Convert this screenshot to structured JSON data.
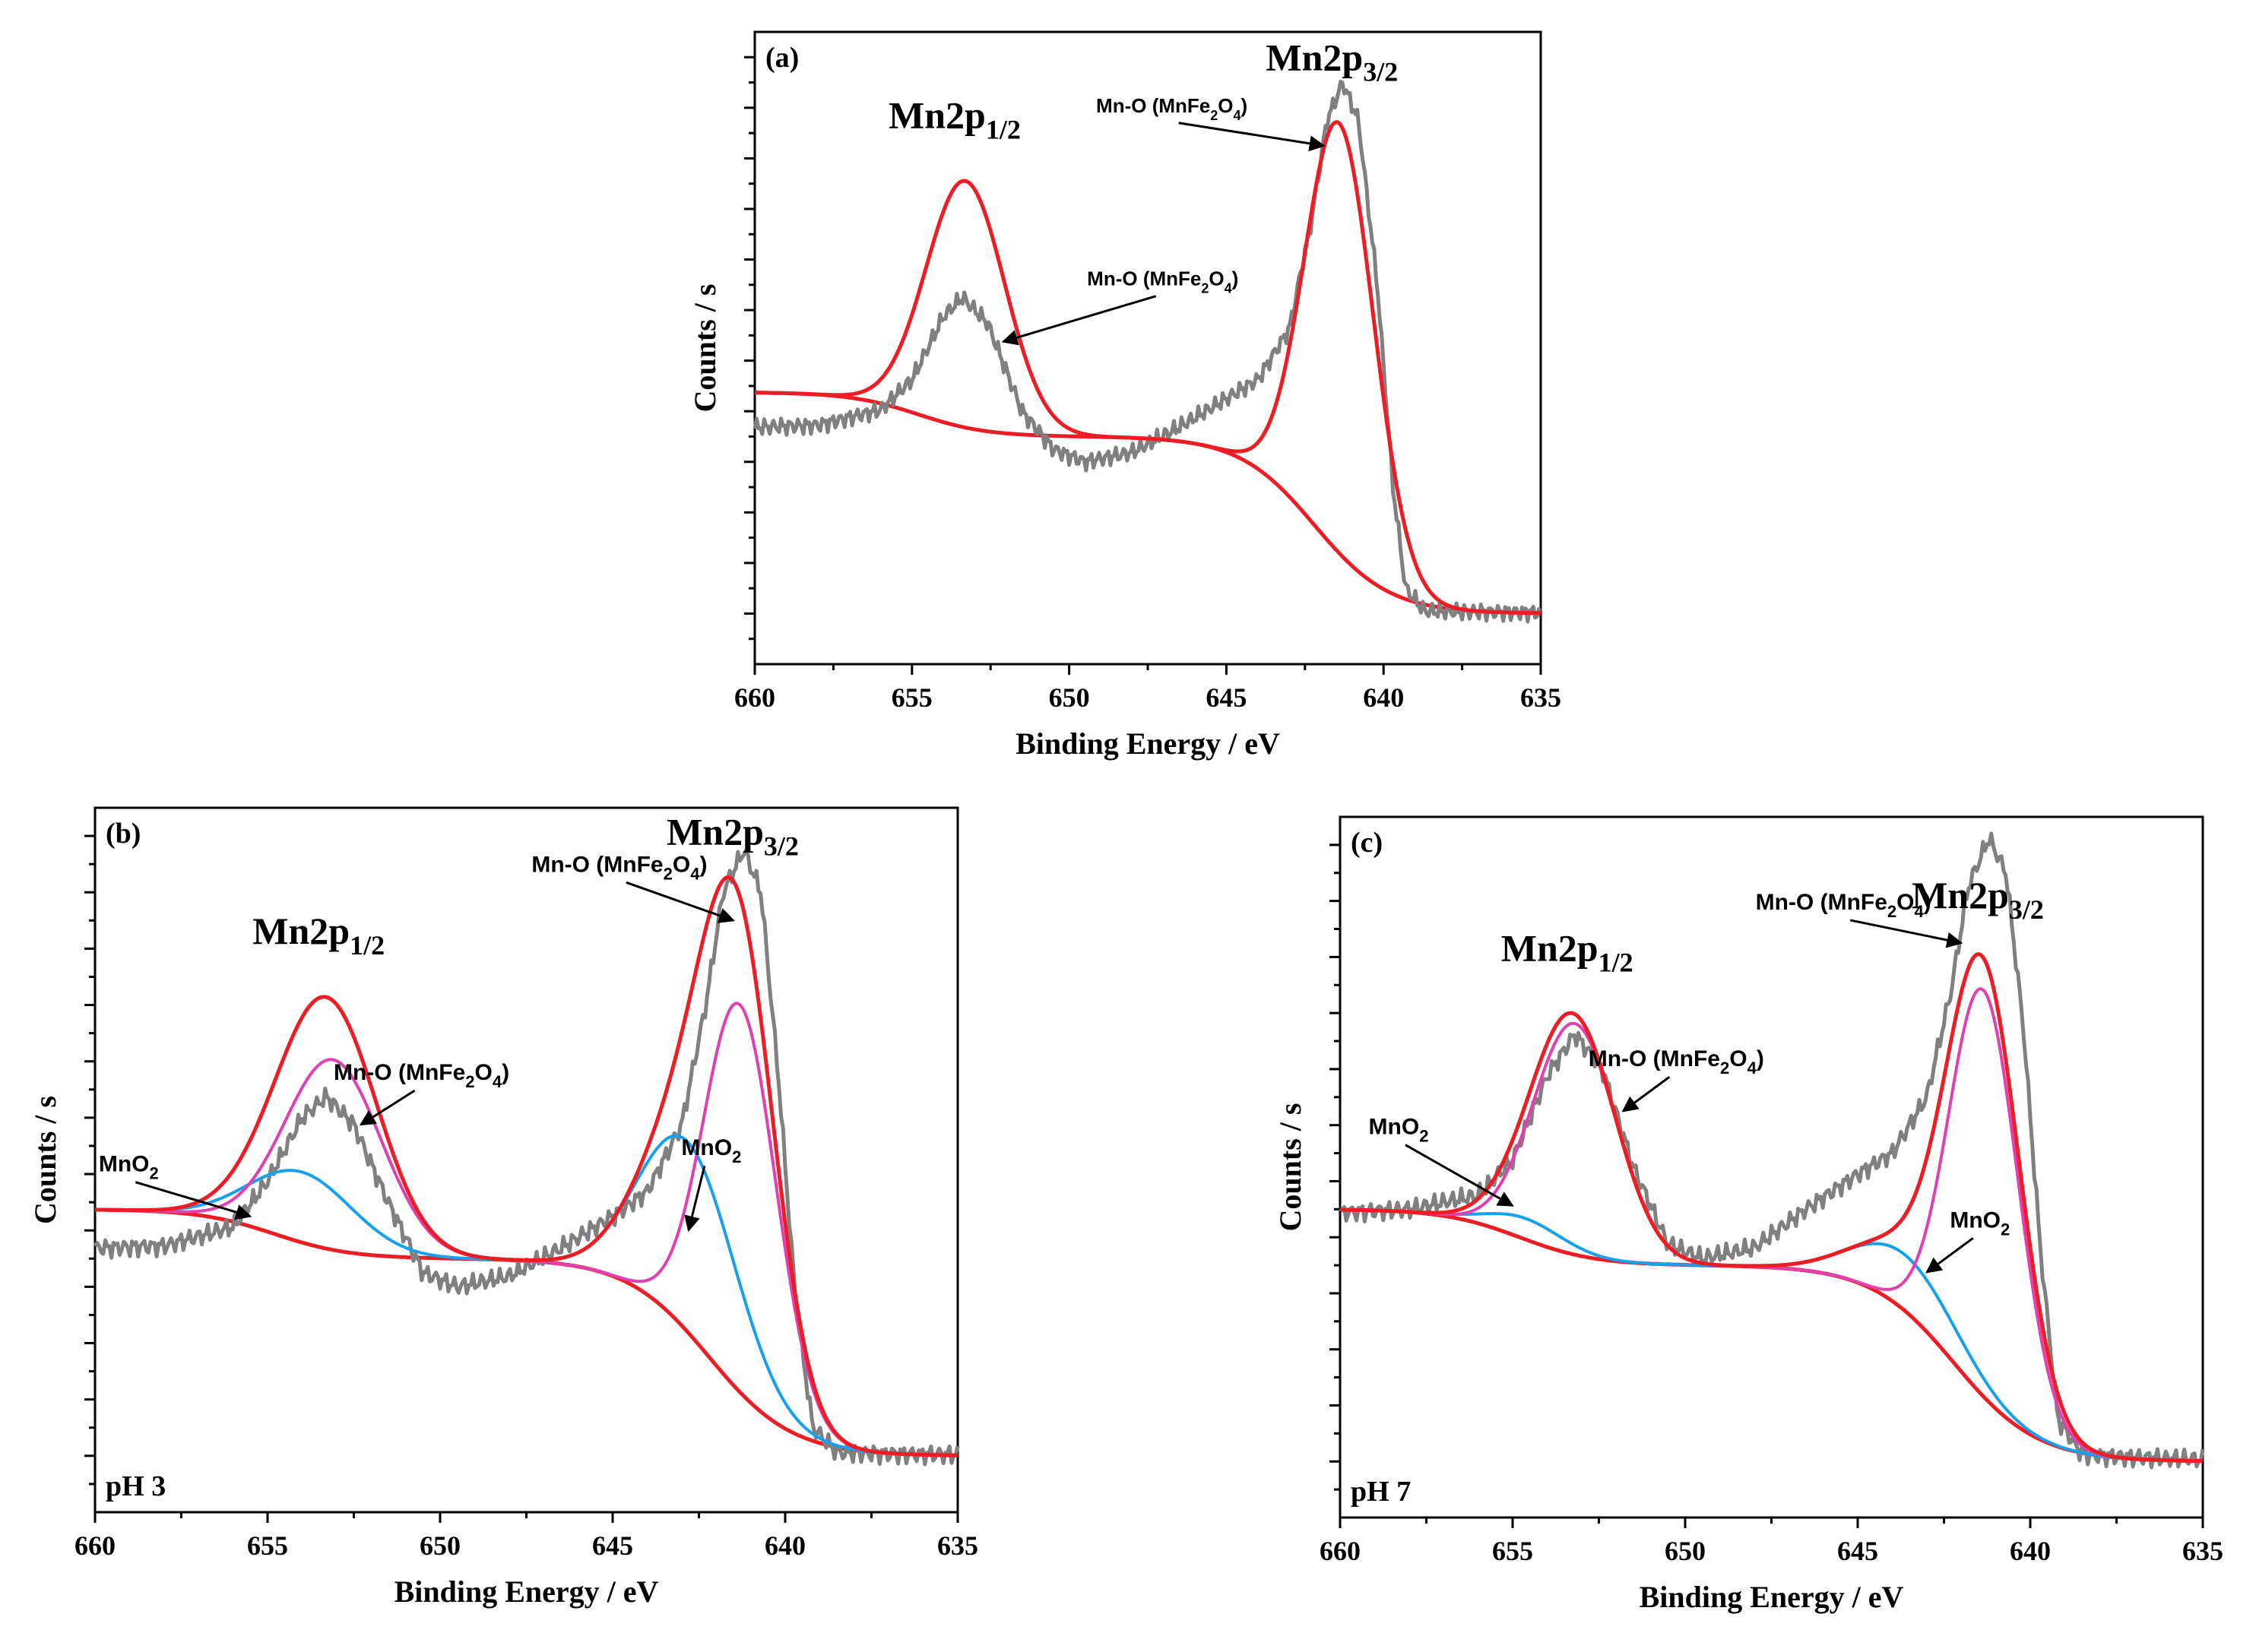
{
  "figure": {
    "x_axis_title": "Binding Energy / eV",
    "y_axis_title": "Counts / s"
  },
  "colors": {
    "raw": "#808080",
    "envelope": "#ee1c24",
    "background": "#ee1c24",
    "mn_o": "#e040b0",
    "mno2": "#18a0f0"
  },
  "chart_data": [
    {
      "type": "line",
      "panel": "a",
      "tag": "(a)",
      "condition": "",
      "title": "",
      "xlabel": "Binding Energy / eV",
      "ylabel": "Counts / s",
      "xlim": [
        660,
        635
      ],
      "ylim": [
        0,
        100
      ],
      "x_ticks": [
        660,
        655,
        650,
        645,
        640,
        635
      ],
      "tick_labels": [
        "660",
        "655",
        "650",
        "645",
        "640",
        "635"
      ],
      "peaks": [
        {
          "label": "Mn2p",
          "subscript": "1/2",
          "x": 653.4
        },
        {
          "label": "Mn2p",
          "subscript": "3/2",
          "x": 641.4
        }
      ],
      "annotations": [
        {
          "text": "Mn-O (MnFe",
          "sub1": "2",
          "mid": "O",
          "sub2": "4",
          "end": ")",
          "target": [
            652.1,
            51
          ]
        },
        {
          "text": "Mn-O (MnFe",
          "sub1": "2",
          "mid": "O",
          "sub2": "4",
          "end": ")",
          "target": [
            641.9,
            82
          ]
        }
      ],
      "series": [
        {
          "name": "raw",
          "points": [
            [
              660,
              37.5
            ],
            [
              658,
              37.8
            ],
            [
              656,
              40.2
            ],
            [
              655,
              45
            ],
            [
              654,
              55
            ],
            [
              653.4,
              58
            ],
            [
              652.6,
              54
            ],
            [
              651.5,
              40
            ],
            [
              650.5,
              34
            ],
            [
              649.5,
              32
            ],
            [
              648,
              33.5
            ],
            [
              646.5,
              37.5
            ],
            [
              645,
              42
            ],
            [
              644,
              45
            ],
            [
              643,
              53
            ],
            [
              642.3,
              70
            ],
            [
              641.8,
              86
            ],
            [
              641.3,
              92
            ],
            [
              640.8,
              86
            ],
            [
              640.2,
              60
            ],
            [
              639.7,
              28
            ],
            [
              639.3,
              12
            ],
            [
              638.7,
              8.4
            ],
            [
              637.5,
              8.3
            ],
            [
              635,
              8.2
            ]
          ]
        },
        {
          "name": "envelope",
          "components": [
            {
              "type": "background",
              "offset": 8,
              "steps": [
                {
                  "a": 28,
                  "c": 642.2,
                  "w": 1.2
                },
                {
                  "a": 7,
                  "c": 654.8,
                  "w": 1.1
                }
              ]
            },
            {
              "type": "gauss",
              "amp": 39,
              "center": 653.3,
              "sigma": 1.25
            },
            {
              "type": "gauss",
              "amp": 68,
              "center": 641.4,
              "sigma": 1.1
            }
          ]
        },
        {
          "name": "background",
          "components": [
            {
              "type": "background",
              "offset": 8,
              "steps": [
                {
                  "a": 28,
                  "c": 642.2,
                  "w": 1.2
                },
                {
                  "a": 7,
                  "c": 654.8,
                  "w": 1.1
                }
              ]
            }
          ]
        }
      ]
    },
    {
      "type": "line",
      "panel": "b",
      "tag": "(b)",
      "condition": "pH 3",
      "title": "",
      "xlabel": "Binding Energy / eV",
      "ylabel": "Counts / s",
      "xlim": [
        660,
        635
      ],
      "ylim": [
        0,
        100
      ],
      "x_ticks": [
        660,
        655,
        650,
        645,
        640,
        635
      ],
      "tick_labels": [
        "660",
        "655",
        "650",
        "645",
        "640",
        "635"
      ],
      "peaks": [
        {
          "label": "Mn2p",
          "subscript": "1/2",
          "x": 653.3
        },
        {
          "label": "Mn2p",
          "subscript": "3/2",
          "x": 641.3
        }
      ],
      "annotations": [
        {
          "text": "MnO",
          "sub1": "2",
          "mid": "",
          "sub2": "",
          "end": "",
          "target": [
            655.5,
            42
          ]
        },
        {
          "text": "Mn-O (MnFe",
          "sub1": "2",
          "mid": "O",
          "sub2": "4",
          "end": ")",
          "target": [
            652.3,
            55
          ]
        },
        {
          "text": "MnO",
          "sub1": "2",
          "mid": "",
          "sub2": "",
          "end": "",
          "target": [
            642.8,
            40
          ]
        },
        {
          "text": "Mn-O (MnFe",
          "sub1": "2",
          "mid": "O",
          "sub2": "4",
          "end": ")",
          "target": [
            641.5,
            84
          ]
        }
      ],
      "series": [
        {
          "name": "raw",
          "points": [
            [
              660,
              37.5
            ],
            [
              658,
              37.8
            ],
            [
              656,
              40.5
            ],
            [
              655,
              47
            ],
            [
              654,
              56
            ],
            [
              653.3,
              59
            ],
            [
              652.5,
              55
            ],
            [
              651.5,
              44
            ],
            [
              650.5,
              34
            ],
            [
              649.5,
              32
            ],
            [
              648,
              33.5
            ],
            [
              646.5,
              37.5
            ],
            [
              645,
              42
            ],
            [
              644,
              45.5
            ],
            [
              643,
              55
            ],
            [
              642.3,
              72
            ],
            [
              641.8,
              88
            ],
            [
              641.2,
              94
            ],
            [
              640.7,
              88
            ],
            [
              640.2,
              62
            ],
            [
              639.7,
              30
            ],
            [
              639.2,
              12
            ],
            [
              638.5,
              8.5
            ],
            [
              637,
              8.3
            ],
            [
              635,
              8.2
            ]
          ]
        },
        {
          "name": "envelope",
          "components": [
            {
              "type": "background",
              "offset": 8,
              "steps": [
                {
                  "a": 28,
                  "c": 642.2,
                  "w": 1.2
                },
                {
                  "a": 7,
                  "c": 654.8,
                  "w": 1.1
                }
              ]
            },
            {
              "type": "gauss",
              "amp": 27,
              "center": 653.1,
              "sigma": 1.4
            },
            {
              "type": "gauss",
              "amp": 10,
              "center": 654.0,
              "sigma": 1.5
            },
            {
              "type": "gauss",
              "amp": 55,
              "center": 641.3,
              "sigma": 1.05
            },
            {
              "type": "gauss",
              "amp": 27,
              "center": 642.8,
              "sigma": 1.4
            }
          ]
        },
        {
          "name": "mn_o",
          "components": [
            {
              "type": "background",
              "offset": 8,
              "steps": [
                {
                  "a": 28,
                  "c": 642.2,
                  "w": 1.2
                },
                {
                  "a": 7,
                  "c": 654.8,
                  "w": 1.1
                }
              ]
            },
            {
              "type": "gauss",
              "amp": 27,
              "center": 653.1,
              "sigma": 1.4
            },
            {
              "type": "gauss",
              "amp": 55,
              "center": 641.3,
              "sigma": 1.05
            }
          ]
        },
        {
          "name": "mno2",
          "components": [
            {
              "type": "background",
              "offset": 8,
              "steps": [
                {
                  "a": 28,
                  "c": 642.2,
                  "w": 1.2
                },
                {
                  "a": 7,
                  "c": 654.8,
                  "w": 1.1
                }
              ]
            },
            {
              "type": "gauss",
              "amp": 10,
              "center": 654.0,
              "sigma": 1.5
            },
            {
              "type": "gauss",
              "amp": 27,
              "center": 642.8,
              "sigma": 1.4
            }
          ]
        },
        {
          "name": "background",
          "components": [
            {
              "type": "background",
              "offset": 8,
              "steps": [
                {
                  "a": 28,
                  "c": 642.2,
                  "w": 1.2
                },
                {
                  "a": 7,
                  "c": 654.8,
                  "w": 1.1
                }
              ]
            }
          ]
        }
      ]
    },
    {
      "type": "line",
      "panel": "c",
      "tag": "(c)",
      "condition": "pH 7",
      "title": "",
      "xlabel": "Binding Energy / eV",
      "ylabel": "Counts / s",
      "xlim": [
        660,
        635
      ],
      "ylim": [
        0,
        100
      ],
      "x_ticks": [
        660,
        655,
        650,
        645,
        640,
        635
      ],
      "tick_labels": [
        "660",
        "655",
        "650",
        "645",
        "640",
        "635"
      ],
      "peaks": [
        {
          "label": "Mn2p",
          "subscript": "1/2",
          "x": 653.2
        },
        {
          "label": "Mn2p",
          "subscript": "3/2",
          "x": 641.3
        }
      ],
      "annotations": [
        {
          "text": "MnO",
          "sub1": "2",
          "mid": "",
          "sub2": "",
          "end": "",
          "target": [
            655.0,
            44.5
          ]
        },
        {
          "text": "Mn-O (MnFe",
          "sub1": "2",
          "mid": "O",
          "sub2": "4",
          "end": ")",
          "target": [
            651.8,
            58
          ]
        },
        {
          "text": "MnO",
          "sub1": "2",
          "mid": "",
          "sub2": "",
          "end": "",
          "target": [
            643.0,
            35
          ]
        },
        {
          "text": "Mn-O (MnFe",
          "sub1": "2",
          "mid": "O",
          "sub2": "4",
          "end": ")",
          "target": [
            642.0,
            82
          ]
        }
      ],
      "series": [
        {
          "name": "raw",
          "points": [
            [
              660,
              43.5
            ],
            [
              658,
              44
            ],
            [
              656,
              46
            ],
            [
              655,
              51
            ],
            [
              654,
              63
            ],
            [
              653.2,
              69
            ],
            [
              652.4,
              64
            ],
            [
              651.5,
              50
            ],
            [
              650.5,
              39
            ],
            [
              649.5,
              37
            ],
            [
              648,
              38.5
            ],
            [
              646.5,
              44
            ],
            [
              645,
              49
            ],
            [
              644,
              52
            ],
            [
              643,
              60
            ],
            [
              642.3,
              75
            ],
            [
              641.8,
              90
            ],
            [
              641.2,
              97
            ],
            [
              640.7,
              92
            ],
            [
              640.2,
              70
            ],
            [
              639.7,
              38
            ],
            [
              639.2,
              14
            ],
            [
              638.5,
              9
            ],
            [
              637,
              8.6
            ],
            [
              635,
              8.3
            ]
          ]
        },
        {
          "name": "envelope",
          "components": [
            {
              "type": "background",
              "offset": 8,
              "steps": [
                {
                  "a": 28,
                  "c": 642.2,
                  "w": 1.2
                },
                {
                  "a": 8,
                  "c": 654.8,
                  "w": 1.1
                }
              ]
            },
            {
              "type": "gauss",
              "amp": 33,
              "center": 653.2,
              "sigma": 1.2
            },
            {
              "type": "gauss",
              "amp": 3,
              "center": 654.6,
              "sigma": 1.1
            },
            {
              "type": "gauss",
              "amp": 60,
              "center": 641.35,
              "sigma": 1.05
            },
            {
              "type": "gauss",
              "amp": 8,
              "center": 643.6,
              "sigma": 1.5
            }
          ]
        },
        {
          "name": "mn_o",
          "components": [
            {
              "type": "background",
              "offset": 8,
              "steps": [
                {
                  "a": 28,
                  "c": 642.2,
                  "w": 1.2
                },
                {
                  "a": 8,
                  "c": 654.8,
                  "w": 1.1
                }
              ]
            },
            {
              "type": "gauss",
              "amp": 33,
              "center": 653.2,
              "sigma": 1.2
            },
            {
              "type": "gauss",
              "amp": 58,
              "center": 641.35,
              "sigma": 1.0
            }
          ]
        },
        {
          "name": "mno2",
          "components": [
            {
              "type": "background",
              "offset": 8,
              "steps": [
                {
                  "a": 28,
                  "c": 642.2,
                  "w": 1.2
                },
                {
                  "a": 8,
                  "c": 654.8,
                  "w": 1.1
                }
              ]
            },
            {
              "type": "gauss",
              "amp": 3,
              "center": 654.6,
              "sigma": 1.1
            },
            {
              "type": "gauss",
              "amp": 8,
              "center": 643.6,
              "sigma": 1.5
            }
          ]
        },
        {
          "name": "background",
          "components": [
            {
              "type": "background",
              "offset": 8,
              "steps": [
                {
                  "a": 28,
                  "c": 642.2,
                  "w": 1.2
                },
                {
                  "a": 8,
                  "c": 654.8,
                  "w": 1.1
                }
              ]
            }
          ]
        }
      ]
    }
  ]
}
